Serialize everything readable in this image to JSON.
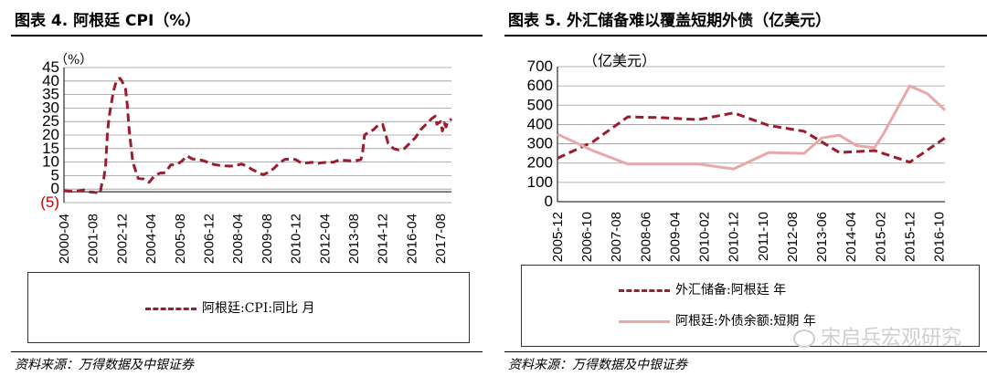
{
  "left": {
    "title": "图表 4. 阿根廷 CPI（%）",
    "source": "资料来源：万得数据及中银证券",
    "chart_data": {
      "type": "line",
      "unit_label": "（%）",
      "y_ticks": [
        "45",
        "40",
        "35",
        "30",
        "25",
        "20",
        "15",
        "10",
        "5",
        "0",
        "(5)"
      ],
      "y_tick_values": [
        45,
        40,
        35,
        30,
        25,
        20,
        15,
        10,
        5,
        0,
        -5
      ],
      "ylim": [
        -5,
        45
      ],
      "x_ticks": [
        "2000-04",
        "2001-08",
        "2002-12",
        "2004-04",
        "2005-08",
        "2006-12",
        "2008-04",
        "2009-08",
        "2010-12",
        "2012-04",
        "2013-08",
        "2014-12",
        "2016-04",
        "2017-08"
      ],
      "x_range": [
        "2000-04",
        "2018-02"
      ],
      "grid": true,
      "legend_position": "bottom",
      "series": [
        {
          "name": "阿根廷:CPI:同比 月",
          "color": "#9b1c2c",
          "style": "dashed",
          "points": [
            [
              "2000-04",
              -0.6
            ],
            [
              "2000-08",
              -0.8
            ],
            [
              "2000-12",
              -0.7
            ],
            [
              "2001-03",
              -0.3
            ],
            [
              "2001-06",
              -1.0
            ],
            [
              "2001-09",
              -1.2
            ],
            [
              "2001-12",
              -1.5
            ],
            [
              "2002-01",
              2.3
            ],
            [
              "2002-02",
              4.0
            ],
            [
              "2002-03",
              9.0
            ],
            [
              "2002-04",
              21.0
            ],
            [
              "2002-05",
              27.0
            ],
            [
              "2002-06",
              31.0
            ],
            [
              "2002-07",
              35.0
            ],
            [
              "2002-08",
              38.0
            ],
            [
              "2002-09",
              40.0
            ],
            [
              "2002-10",
              40.8
            ],
            [
              "2002-11",
              41.0
            ],
            [
              "2002-12",
              40.0
            ],
            [
              "2003-02",
              37.0
            ],
            [
              "2003-03",
              31.0
            ],
            [
              "2003-04",
              22.0
            ],
            [
              "2003-06",
              10.0
            ],
            [
              "2003-09",
              4.0
            ],
            [
              "2003-12",
              3.7
            ],
            [
              "2004-03",
              2.5
            ],
            [
              "2004-06",
              4.9
            ],
            [
              "2004-09",
              5.9
            ],
            [
              "2004-12",
              6.1
            ],
            [
              "2005-03",
              9.0
            ],
            [
              "2005-06",
              9.0
            ],
            [
              "2005-09",
              10.3
            ],
            [
              "2005-12",
              12.3
            ],
            [
              "2006-03",
              11.1
            ],
            [
              "2006-06",
              11.0
            ],
            [
              "2006-09",
              10.5
            ],
            [
              "2006-12",
              9.8
            ],
            [
              "2007-03",
              9.1
            ],
            [
              "2007-06",
              8.8
            ],
            [
              "2007-09",
              8.6
            ],
            [
              "2007-12",
              8.5
            ],
            [
              "2008-03",
              8.7
            ],
            [
              "2008-06",
              9.3
            ],
            [
              "2008-09",
              8.5
            ],
            [
              "2008-12",
              7.2
            ],
            [
              "2009-03",
              6.3
            ],
            [
              "2009-06",
              5.3
            ],
            [
              "2009-09",
              6.2
            ],
            [
              "2009-12",
              7.7
            ],
            [
              "2010-03",
              9.7
            ],
            [
              "2010-06",
              11.0
            ],
            [
              "2010-09",
              11.1
            ],
            [
              "2010-12",
              10.9
            ],
            [
              "2011-03",
              9.7
            ],
            [
              "2011-06",
              9.7
            ],
            [
              "2011-09",
              9.9
            ],
            [
              "2011-12",
              9.5
            ],
            [
              "2012-03",
              9.8
            ],
            [
              "2012-06",
              9.9
            ],
            [
              "2012-09",
              10.0
            ],
            [
              "2012-12",
              10.8
            ],
            [
              "2013-03",
              10.6
            ],
            [
              "2013-06",
              10.5
            ],
            [
              "2013-09",
              10.5
            ],
            [
              "2013-12",
              10.9
            ],
            [
              "2014-01",
              14.0
            ],
            [
              "2014-02",
              20.0
            ],
            [
              "2014-04",
              21.0
            ],
            [
              "2014-07",
              22.0
            ],
            [
              "2014-10",
              24.0
            ],
            [
              "2014-12",
              24.0
            ],
            [
              "2015-03",
              17.0
            ],
            [
              "2015-06",
              15.0
            ],
            [
              "2015-09",
              14.5
            ],
            [
              "2015-12",
              15.0
            ],
            [
              "2016-03",
              17.0
            ],
            [
              "2016-06",
              19.0
            ],
            [
              "2016-09",
              22.0
            ],
            [
              "2016-12",
              24.0
            ],
            [
              "2017-03",
              26.0
            ],
            [
              "2017-05",
              27.0
            ],
            [
              "2017-06",
              24.0
            ],
            [
              "2017-08",
              25.0
            ],
            [
              "2017-09",
              21.5
            ],
            [
              "2017-10",
              24.5
            ],
            [
              "2017-11",
              23.0
            ],
            [
              "2017-12",
              25.0
            ],
            [
              "2018-01",
              25.3
            ],
            [
              "2018-02",
              26.0
            ]
          ]
        }
      ]
    }
  },
  "right": {
    "title": "图表 5. 外汇储备难以覆盖短期外债（亿美元）",
    "source": "资料来源：万得数据及中银证券",
    "watermark": "宋启兵宏观研究",
    "chart_data": {
      "type": "line",
      "unit_label": "（亿美元）",
      "y_ticks": [
        "700",
        "600",
        "500",
        "400",
        "300",
        "200",
        "100",
        "0"
      ],
      "y_tick_values": [
        700,
        600,
        500,
        400,
        300,
        200,
        100,
        0
      ],
      "ylim": [
        0,
        700
      ],
      "x_ticks": [
        "2005-12",
        "2006-10",
        "2007-08",
        "2008-06",
        "2009-04",
        "2010-02",
        "2010-12",
        "2011-10",
        "2012-08",
        "2013-06",
        "2014-04",
        "2015-02",
        "2015-12",
        "2016-10"
      ],
      "x_range": [
        "2005-12",
        "2016-12"
      ],
      "grid": true,
      "legend_position": "bottom",
      "series": [
        {
          "name": "外汇储备:阿根廷 年",
          "color": "#9b1c2c",
          "style": "dashed",
          "points": [
            [
              "2005-12",
              225
            ],
            [
              "2006-12",
              310
            ],
            [
              "2007-12",
              440
            ],
            [
              "2008-12",
              435
            ],
            [
              "2009-12",
              425
            ],
            [
              "2010-12",
              460
            ],
            [
              "2011-12",
              395
            ],
            [
              "2012-12",
              365
            ],
            [
              "2013-12",
              255
            ],
            [
              "2014-12",
              265
            ],
            [
              "2015-12",
              205
            ],
            [
              "2016-12",
              330
            ]
          ]
        },
        {
          "name": "阿根廷:外债余额:短期 年",
          "color": "#e8a8a8",
          "style": "solid",
          "points": [
            [
              "2005-12",
              350
            ],
            [
              "2006-12",
              265
            ],
            [
              "2007-12",
              195
            ],
            [
              "2008-12",
              195
            ],
            [
              "2009-12",
              195
            ],
            [
              "2010-12",
              170
            ],
            [
              "2011-12",
              255
            ],
            [
              "2012-12",
              250
            ],
            [
              "2013-06",
              330
            ],
            [
              "2013-12",
              345
            ],
            [
              "2014-06",
              290
            ],
            [
              "2014-12",
              280
            ],
            [
              "2015-03",
              350
            ],
            [
              "2015-12",
              600
            ],
            [
              "2016-06",
              560
            ],
            [
              "2016-12",
              475
            ]
          ]
        }
      ]
    }
  }
}
